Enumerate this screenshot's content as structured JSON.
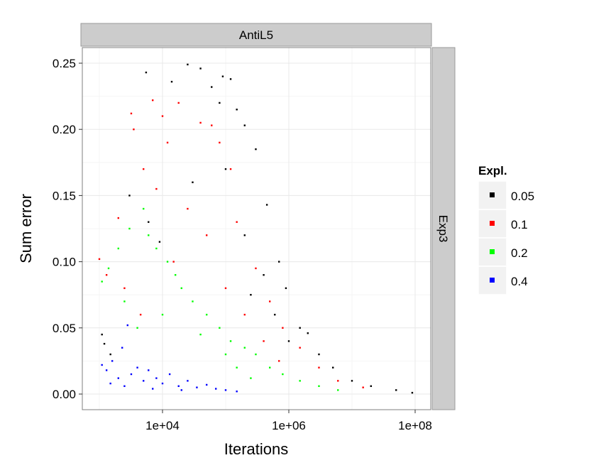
{
  "chart_data": {
    "type": "scatter",
    "facets": {
      "column_label": "AntiL5",
      "row_label": "Exp3"
    },
    "xlabel": "Iterations",
    "ylabel": "Sum error",
    "x_scale": "log10",
    "xlim": [
      1000,
      100000000
    ],
    "ylim": [
      0,
      0.25
    ],
    "x_ticks": [
      10000,
      1000000,
      100000000
    ],
    "x_tick_labels": [
      "1e+04",
      "1e+06",
      "1e+08"
    ],
    "y_ticks": [
      0,
      0.05,
      0.1,
      0.15,
      0.2,
      0.25
    ],
    "y_tick_labels": [
      "0.00",
      "0.05",
      "0.10",
      "0.15",
      "0.20",
      "0.25"
    ],
    "grid": true,
    "legend": {
      "title": "Expl.",
      "placement": "right"
    },
    "series": [
      {
        "name": "0.05",
        "color": "#000000",
        "points": [
          [
            5500,
            0.243
          ],
          [
            25000,
            0.249
          ],
          [
            40000,
            0.246
          ],
          [
            90000,
            0.24
          ],
          [
            120000,
            0.238
          ],
          [
            14000,
            0.236
          ],
          [
            60000,
            0.232
          ],
          [
            200000,
            0.203
          ],
          [
            300000,
            0.185
          ],
          [
            450000,
            0.143
          ],
          [
            150000,
            0.215
          ],
          [
            80000,
            0.22
          ],
          [
            700000,
            0.1
          ],
          [
            900000,
            0.08
          ],
          [
            1500000,
            0.05
          ],
          [
            2000000,
            0.046
          ],
          [
            3000000,
            0.03
          ],
          [
            5000000,
            0.02
          ],
          [
            10000000,
            0.01
          ],
          [
            20000000,
            0.006
          ],
          [
            50000000,
            0.003
          ],
          [
            90000000,
            0.001
          ],
          [
            1100,
            0.045
          ],
          [
            1200,
            0.038
          ],
          [
            1500,
            0.03
          ],
          [
            3000,
            0.15
          ],
          [
            6000,
            0.13
          ],
          [
            9000,
            0.115
          ],
          [
            30000,
            0.16
          ],
          [
            100000,
            0.17
          ],
          [
            200000,
            0.12
          ],
          [
            400000,
            0.09
          ],
          [
            600000,
            0.06
          ],
          [
            1000000,
            0.04
          ],
          [
            250000,
            0.075
          ]
        ]
      },
      {
        "name": "0.1",
        "color": "#ff0000",
        "points": [
          [
            3200,
            0.212
          ],
          [
            3500,
            0.2
          ],
          [
            7000,
            0.222
          ],
          [
            10000,
            0.21
          ],
          [
            12000,
            0.19
          ],
          [
            18000,
            0.22
          ],
          [
            40000,
            0.205
          ],
          [
            60000,
            0.203
          ],
          [
            80000,
            0.19
          ],
          [
            120000,
            0.17
          ],
          [
            1000,
            0.102
          ],
          [
            2000,
            0.133
          ],
          [
            5000,
            0.17
          ],
          [
            8000,
            0.155
          ],
          [
            25000,
            0.14
          ],
          [
            50000,
            0.12
          ],
          [
            150000,
            0.13
          ],
          [
            300000,
            0.095
          ],
          [
            500000,
            0.07
          ],
          [
            800000,
            0.05
          ],
          [
            1500000,
            0.035
          ],
          [
            3000000,
            0.02
          ],
          [
            6000000,
            0.01
          ],
          [
            15000000,
            0.005
          ],
          [
            1300,
            0.09
          ],
          [
            2500,
            0.08
          ],
          [
            4500,
            0.06
          ],
          [
            15000,
            0.1
          ],
          [
            100000,
            0.08
          ],
          [
            200000,
            0.06
          ],
          [
            400000,
            0.04
          ],
          [
            700000,
            0.025
          ]
        ]
      },
      {
        "name": "0.2",
        "color": "#00ff00",
        "points": [
          [
            1100,
            0.085
          ],
          [
            1400,
            0.095
          ],
          [
            2000,
            0.11
          ],
          [
            3000,
            0.125
          ],
          [
            5000,
            0.14
          ],
          [
            6000,
            0.12
          ],
          [
            8000,
            0.11
          ],
          [
            12000,
            0.1
          ],
          [
            16000,
            0.09
          ],
          [
            20000,
            0.08
          ],
          [
            30000,
            0.07
          ],
          [
            50000,
            0.06
          ],
          [
            80000,
            0.05
          ],
          [
            120000,
            0.04
          ],
          [
            200000,
            0.035
          ],
          [
            300000,
            0.03
          ],
          [
            500000,
            0.02
          ],
          [
            800000,
            0.015
          ],
          [
            1500000,
            0.01
          ],
          [
            3000000,
            0.006
          ],
          [
            6000000,
            0.003
          ],
          [
            2500,
            0.07
          ],
          [
            4000,
            0.05
          ],
          [
            10000,
            0.06
          ],
          [
            40000,
            0.045
          ],
          [
            100000,
            0.03
          ],
          [
            150000,
            0.02
          ],
          [
            250000,
            0.012
          ]
        ]
      },
      {
        "name": "0.4",
        "color": "#0000ff",
        "points": [
          [
            1100,
            0.022
          ],
          [
            1300,
            0.018
          ],
          [
            1600,
            0.025
          ],
          [
            2000,
            0.012
          ],
          [
            2300,
            0.035
          ],
          [
            2800,
            0.052
          ],
          [
            3200,
            0.015
          ],
          [
            4000,
            0.02
          ],
          [
            5000,
            0.01
          ],
          [
            6000,
            0.018
          ],
          [
            8000,
            0.012
          ],
          [
            10000,
            0.008
          ],
          [
            13000,
            0.015
          ],
          [
            18000,
            0.006
          ],
          [
            25000,
            0.01
          ],
          [
            35000,
            0.005
          ],
          [
            50000,
            0.007
          ],
          [
            70000,
            0.004
          ],
          [
            100000,
            0.003
          ],
          [
            150000,
            0.002
          ],
          [
            1500,
            0.008
          ],
          [
            2500,
            0.006
          ],
          [
            7000,
            0.004
          ],
          [
            20000,
            0.003
          ]
        ]
      }
    ]
  }
}
